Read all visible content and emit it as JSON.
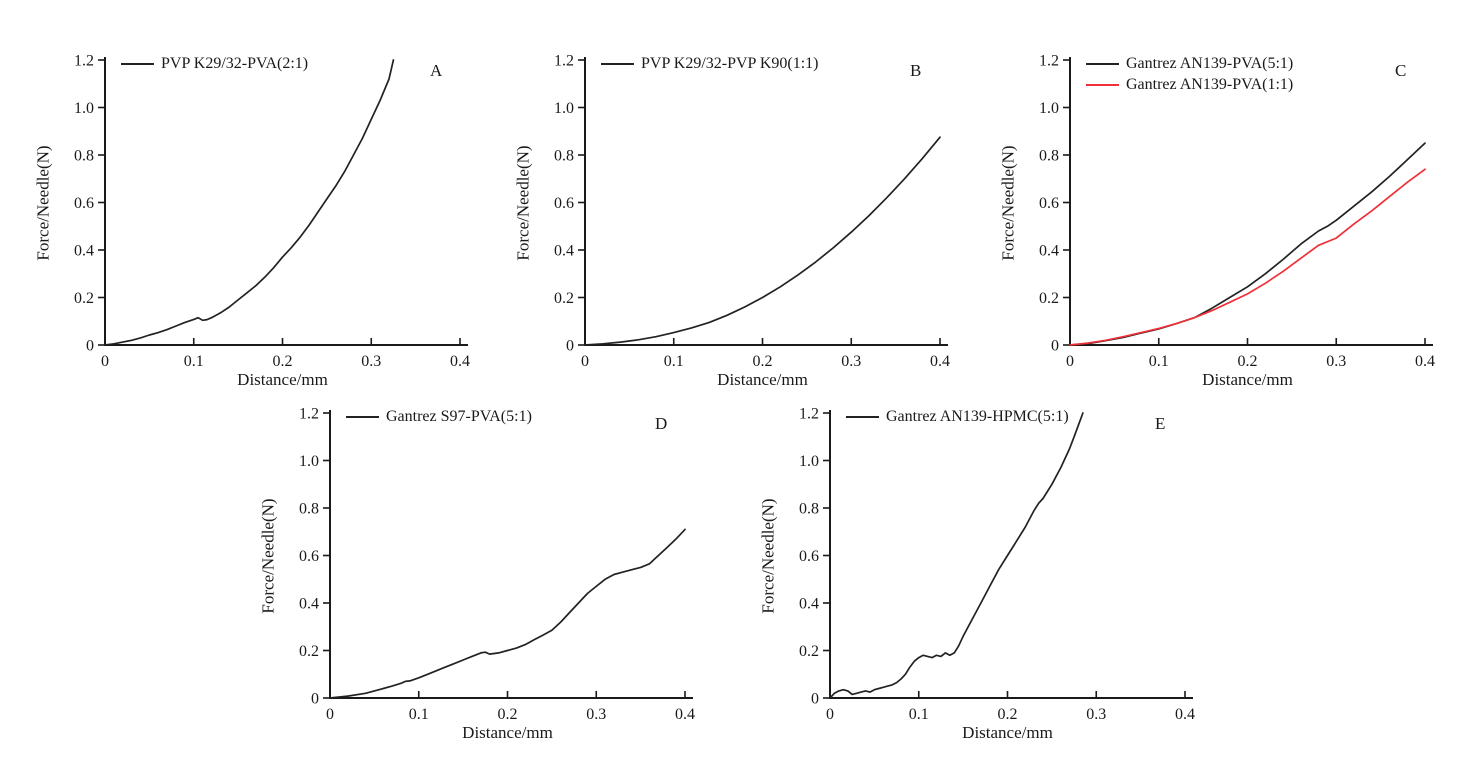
{
  "figure": {
    "background": "#ffffff",
    "axis_color": "#1a1a1a",
    "text_color": "#1a1a1a"
  },
  "chart_data": [
    {
      "id": "A",
      "type": "line",
      "panel_label": "A",
      "xlabel": "Distance/mm",
      "ylabel": "Force/Needle(N)",
      "xlim": [
        0,
        0.4
      ],
      "ylim": [
        0,
        1.2
      ],
      "x_ticks": [
        "0",
        "0.1",
        "0.2",
        "0.3",
        "0.4"
      ],
      "y_ticks": [
        "0",
        "0.2",
        "0.4",
        "0.6",
        "0.8",
        "1.0",
        "1.2"
      ],
      "grid": false,
      "legend_position": "top-left",
      "series": [
        {
          "name": "PVP K29/32-PVA(2:1)",
          "color": "#222222",
          "points": [
            [
              0,
              0
            ],
            [
              0.01,
              0.005
            ],
            [
              0.02,
              0.012
            ],
            [
              0.03,
              0.02
            ],
            [
              0.04,
              0.03
            ],
            [
              0.05,
              0.042
            ],
            [
              0.06,
              0.052
            ],
            [
              0.07,
              0.065
            ],
            [
              0.08,
              0.08
            ],
            [
              0.09,
              0.095
            ],
            [
              0.1,
              0.108
            ],
            [
              0.105,
              0.115
            ],
            [
              0.11,
              0.104
            ],
            [
              0.115,
              0.107
            ],
            [
              0.12,
              0.115
            ],
            [
              0.13,
              0.135
            ],
            [
              0.14,
              0.16
            ],
            [
              0.15,
              0.19
            ],
            [
              0.16,
              0.22
            ],
            [
              0.17,
              0.25
            ],
            [
              0.18,
              0.285
            ],
            [
              0.19,
              0.325
            ],
            [
              0.2,
              0.37
            ],
            [
              0.21,
              0.41
            ],
            [
              0.22,
              0.455
            ],
            [
              0.23,
              0.505
            ],
            [
              0.24,
              0.56
            ],
            [
              0.25,
              0.615
            ],
            [
              0.26,
              0.67
            ],
            [
              0.27,
              0.73
            ],
            [
              0.28,
              0.8
            ],
            [
              0.29,
              0.87
            ],
            [
              0.3,
              0.95
            ],
            [
              0.31,
              1.03
            ],
            [
              0.32,
              1.12
            ],
            [
              0.325,
              1.2
            ]
          ]
        }
      ]
    },
    {
      "id": "B",
      "type": "line",
      "panel_label": "B",
      "xlabel": "Distance/mm",
      "ylabel": "Force/Needle(N)",
      "xlim": [
        0,
        0.4
      ],
      "ylim": [
        0,
        1.2
      ],
      "x_ticks": [
        "0",
        "0.1",
        "0.2",
        "0.3",
        "0.4"
      ],
      "y_ticks": [
        "0",
        "0.2",
        "0.4",
        "0.6",
        "0.8",
        "1.0",
        "1.2"
      ],
      "grid": false,
      "legend_position": "top-left",
      "series": [
        {
          "name": "PVP K29/32-PVP K90(1:1)",
          "color": "#222222",
          "points": [
            [
              0,
              0
            ],
            [
              0.02,
              0.005
            ],
            [
              0.04,
              0.012
            ],
            [
              0.06,
              0.022
            ],
            [
              0.08,
              0.035
            ],
            [
              0.1,
              0.052
            ],
            [
              0.12,
              0.072
            ],
            [
              0.14,
              0.095
            ],
            [
              0.16,
              0.125
            ],
            [
              0.18,
              0.16
            ],
            [
              0.2,
              0.2
            ],
            [
              0.22,
              0.245
            ],
            [
              0.24,
              0.295
            ],
            [
              0.26,
              0.35
            ],
            [
              0.28,
              0.41
            ],
            [
              0.3,
              0.475
            ],
            [
              0.32,
              0.545
            ],
            [
              0.34,
              0.62
            ],
            [
              0.36,
              0.7
            ],
            [
              0.38,
              0.785
            ],
            [
              0.4,
              0.875
            ]
          ]
        }
      ]
    },
    {
      "id": "C",
      "type": "line",
      "panel_label": "C",
      "xlabel": "Distance/mm",
      "ylabel": "Force/Needle(N)",
      "xlim": [
        0,
        0.4
      ],
      "ylim": [
        0,
        1.2
      ],
      "x_ticks": [
        "0",
        "0.1",
        "0.2",
        "0.3",
        "0.4"
      ],
      "y_ticks": [
        "0",
        "0.2",
        "0.4",
        "0.6",
        "0.8",
        "1.0",
        "1.2"
      ],
      "grid": false,
      "legend_position": "top-left",
      "series": [
        {
          "name": "Gantrez AN139-PVA(5:1)",
          "color": "#222222",
          "points": [
            [
              0,
              0
            ],
            [
              0.02,
              0.006
            ],
            [
              0.04,
              0.018
            ],
            [
              0.06,
              0.032
            ],
            [
              0.08,
              0.05
            ],
            [
              0.1,
              0.068
            ],
            [
              0.12,
              0.09
            ],
            [
              0.14,
              0.115
            ],
            [
              0.16,
              0.155
            ],
            [
              0.18,
              0.2
            ],
            [
              0.2,
              0.245
            ],
            [
              0.22,
              0.3
            ],
            [
              0.24,
              0.36
            ],
            [
              0.26,
              0.425
            ],
            [
              0.28,
              0.48
            ],
            [
              0.29,
              0.5
            ],
            [
              0.3,
              0.525
            ],
            [
              0.32,
              0.585
            ],
            [
              0.34,
              0.645
            ],
            [
              0.36,
              0.71
            ],
            [
              0.38,
              0.78
            ],
            [
              0.4,
              0.85
            ]
          ]
        },
        {
          "name": "Gantrez AN139-PVA(1:1)",
          "color": "#ef3038",
          "points": [
            [
              0,
              0
            ],
            [
              0.02,
              0.008
            ],
            [
              0.04,
              0.02
            ],
            [
              0.06,
              0.035
            ],
            [
              0.08,
              0.052
            ],
            [
              0.1,
              0.07
            ],
            [
              0.12,
              0.09
            ],
            [
              0.14,
              0.115
            ],
            [
              0.16,
              0.145
            ],
            [
              0.18,
              0.18
            ],
            [
              0.2,
              0.215
            ],
            [
              0.22,
              0.26
            ],
            [
              0.24,
              0.31
            ],
            [
              0.26,
              0.365
            ],
            [
              0.28,
              0.42
            ],
            [
              0.3,
              0.45
            ],
            [
              0.32,
              0.51
            ],
            [
              0.34,
              0.565
            ],
            [
              0.36,
              0.625
            ],
            [
              0.38,
              0.685
            ],
            [
              0.4,
              0.74
            ]
          ]
        }
      ]
    },
    {
      "id": "D",
      "type": "line",
      "panel_label": "D",
      "xlabel": "Distance/mm",
      "ylabel": "Force/Needle(N)",
      "xlim": [
        0,
        0.4
      ],
      "ylim": [
        0,
        1.2
      ],
      "x_ticks": [
        "0",
        "0.1",
        "0.2",
        "0.3",
        "0.4"
      ],
      "y_ticks": [
        "0",
        "0.2",
        "0.4",
        "0.6",
        "0.8",
        "1.0",
        "1.2"
      ],
      "grid": false,
      "legend_position": "top-left",
      "series": [
        {
          "name": "Gantrez S97-PVA(5:1)",
          "color": "#222222",
          "points": [
            [
              0,
              0
            ],
            [
              0.02,
              0.008
            ],
            [
              0.04,
              0.02
            ],
            [
              0.05,
              0.03
            ],
            [
              0.06,
              0.04
            ],
            [
              0.07,
              0.05
            ],
            [
              0.08,
              0.062
            ],
            [
              0.085,
              0.07
            ],
            [
              0.09,
              0.072
            ],
            [
              0.1,
              0.085
            ],
            [
              0.11,
              0.1
            ],
            [
              0.12,
              0.115
            ],
            [
              0.13,
              0.13
            ],
            [
              0.14,
              0.145
            ],
            [
              0.15,
              0.16
            ],
            [
              0.16,
              0.175
            ],
            [
              0.17,
              0.19
            ],
            [
              0.175,
              0.193
            ],
            [
              0.18,
              0.185
            ],
            [
              0.19,
              0.19
            ],
            [
              0.2,
              0.2
            ],
            [
              0.21,
              0.21
            ],
            [
              0.22,
              0.225
            ],
            [
              0.23,
              0.245
            ],
            [
              0.24,
              0.265
            ],
            [
              0.25,
              0.285
            ],
            [
              0.26,
              0.32
            ],
            [
              0.27,
              0.36
            ],
            [
              0.28,
              0.4
            ],
            [
              0.29,
              0.44
            ],
            [
              0.3,
              0.47
            ],
            [
              0.31,
              0.5
            ],
            [
              0.32,
              0.52
            ],
            [
              0.33,
              0.53
            ],
            [
              0.34,
              0.54
            ],
            [
              0.35,
              0.55
            ],
            [
              0.36,
              0.565
            ],
            [
              0.37,
              0.6
            ],
            [
              0.38,
              0.635
            ],
            [
              0.39,
              0.67
            ],
            [
              0.4,
              0.71
            ]
          ]
        }
      ]
    },
    {
      "id": "E",
      "type": "line",
      "panel_label": "E",
      "xlabel": "Distance/mm",
      "ylabel": "Force/Needle(N)",
      "xlim": [
        0,
        0.4
      ],
      "ylim": [
        0,
        1.2
      ],
      "x_ticks": [
        "0",
        "0.1",
        "0.2",
        "0.3",
        "0.4"
      ],
      "y_ticks": [
        "0",
        "0.2",
        "0.4",
        "0.6",
        "0.8",
        "1.0",
        "1.2"
      ],
      "grid": false,
      "legend_position": "top-left",
      "series": [
        {
          "name": "Gantrez AN139-HPMC(5:1)",
          "color": "#222222",
          "points": [
            [
              0,
              0
            ],
            [
              0.005,
              0.02
            ],
            [
              0.01,
              0.03
            ],
            [
              0.015,
              0.035
            ],
            [
              0.02,
              0.03
            ],
            [
              0.025,
              0.015
            ],
            [
              0.03,
              0.02
            ],
            [
              0.035,
              0.025
            ],
            [
              0.04,
              0.03
            ],
            [
              0.045,
              0.025
            ],
            [
              0.05,
              0.035
            ],
            [
              0.055,
              0.04
            ],
            [
              0.06,
              0.045
            ],
            [
              0.065,
              0.05
            ],
            [
              0.07,
              0.055
            ],
            [
              0.075,
              0.065
            ],
            [
              0.08,
              0.08
            ],
            [
              0.085,
              0.1
            ],
            [
              0.09,
              0.13
            ],
            [
              0.095,
              0.155
            ],
            [
              0.1,
              0.17
            ],
            [
              0.105,
              0.18
            ],
            [
              0.11,
              0.175
            ],
            [
              0.115,
              0.17
            ],
            [
              0.12,
              0.18
            ],
            [
              0.125,
              0.175
            ],
            [
              0.13,
              0.19
            ],
            [
              0.135,
              0.18
            ],
            [
              0.14,
              0.19
            ],
            [
              0.145,
              0.22
            ],
            [
              0.15,
              0.26
            ],
            [
              0.16,
              0.33
            ],
            [
              0.17,
              0.4
            ],
            [
              0.18,
              0.47
            ],
            [
              0.19,
              0.54
            ],
            [
              0.2,
              0.6
            ],
            [
              0.21,
              0.66
            ],
            [
              0.22,
              0.72
            ],
            [
              0.23,
              0.79
            ],
            [
              0.235,
              0.82
            ],
            [
              0.24,
              0.84
            ],
            [
              0.25,
              0.9
            ],
            [
              0.26,
              0.97
            ],
            [
              0.27,
              1.05
            ],
            [
              0.275,
              1.1
            ],
            [
              0.28,
              1.15
            ],
            [
              0.285,
              1.2
            ]
          ]
        }
      ]
    }
  ]
}
